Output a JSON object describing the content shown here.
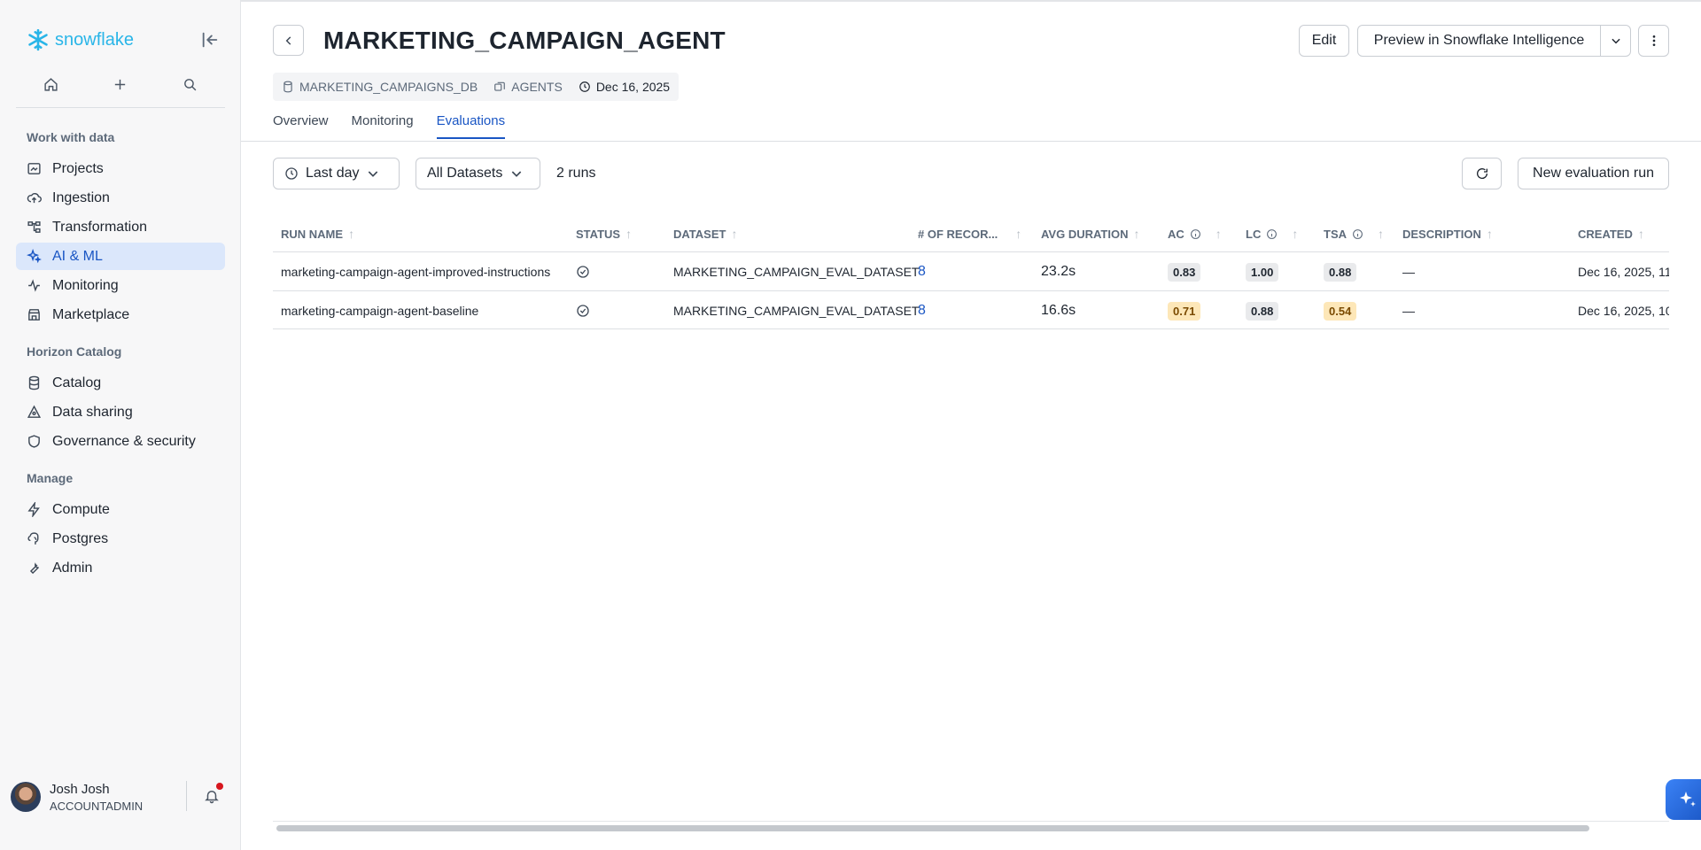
{
  "brand": {
    "name": "snowflake",
    "color": "#29b5e8"
  },
  "sidebar": {
    "sections": [
      {
        "title": "Work with data",
        "items": [
          {
            "label": "Projects",
            "icon": "projects-icon"
          },
          {
            "label": "Ingestion",
            "icon": "cloud-upload-icon"
          },
          {
            "label": "Transformation",
            "icon": "transform-icon"
          },
          {
            "label": "AI & ML",
            "icon": "sparkle-icon",
            "active": true
          },
          {
            "label": "Monitoring",
            "icon": "activity-icon"
          },
          {
            "label": "Marketplace",
            "icon": "store-icon"
          }
        ]
      },
      {
        "title": "Horizon Catalog",
        "items": [
          {
            "label": "Catalog",
            "icon": "database-icon"
          },
          {
            "label": "Data sharing",
            "icon": "share-icon"
          },
          {
            "label": "Governance & security",
            "icon": "shield-icon"
          }
        ]
      },
      {
        "title": "Manage",
        "items": [
          {
            "label": "Compute",
            "icon": "bolt-icon"
          },
          {
            "label": "Postgres",
            "icon": "elephant-icon"
          },
          {
            "label": "Admin",
            "icon": "wrench-icon"
          }
        ]
      }
    ],
    "user": {
      "name": "Josh Josh",
      "role": "ACCOUNTADMIN"
    }
  },
  "header": {
    "title": "MARKETING_CAMPAIGN_AGENT",
    "edit_label": "Edit",
    "preview_label": "Preview in Snowflake Intelligence",
    "meta": {
      "database": "MARKETING_CAMPAIGNS_DB",
      "schema": "AGENTS",
      "date": "Dec 16, 2025"
    },
    "tabs": [
      "Overview",
      "Monitoring",
      "Evaluations"
    ],
    "active_tab": "Evaluations"
  },
  "toolbar": {
    "time_filter": "Last day",
    "dataset_filter": "All Datasets",
    "runs_count": "2 runs",
    "new_run_label": "New evaluation run"
  },
  "table": {
    "columns": [
      "RUN NAME",
      "STATUS",
      "DATASET",
      "# OF RECOR...",
      "AVG DURATION",
      "AC",
      "LC",
      "TSA",
      "DESCRIPTION",
      "CREATED"
    ],
    "rows": [
      {
        "run_name": "marketing-campaign-agent-improved-instructions",
        "dataset": "MARKETING_CAMPAIGN_EVAL_DATASET",
        "records": "8",
        "avg_duration": "23.2s",
        "ac": "0.83",
        "lc": "1.00",
        "tsa": "0.88",
        "description": "—",
        "created": "Dec 16, 2025, 11:",
        "ac_warn": false,
        "tsa_warn": false
      },
      {
        "run_name": "marketing-campaign-agent-baseline",
        "dataset": "MARKETING_CAMPAIGN_EVAL_DATASET",
        "records": "8",
        "avg_duration": "16.6s",
        "ac": "0.71",
        "lc": "0.88",
        "tsa": "0.54",
        "description": "—",
        "created": "Dec 16, 2025, 10",
        "ac_warn": true,
        "tsa_warn": true
      }
    ]
  },
  "colors": {
    "accent": "#1a56c4",
    "active_bg": "#dbe7fb",
    "warn_badge": "#fde7b8",
    "neutral_badge": "#e9eaec"
  }
}
